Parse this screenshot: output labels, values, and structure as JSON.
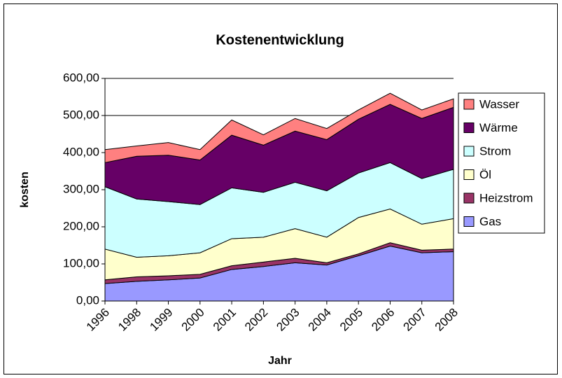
{
  "chart_data": {
    "type": "stacked_area",
    "title": "Kostenentwicklung",
    "x_label": "Jahr",
    "y_label": "kosten",
    "categories": [
      "1996",
      "1998",
      "1999",
      "2000",
      "2001",
      "2002",
      "2003",
      "2004",
      "2005",
      "2006",
      "2007",
      "2008"
    ],
    "series": [
      {
        "name": "Gas",
        "color": "#9999ff",
        "values": [
          47,
          53,
          57,
          62,
          85,
          93,
          103,
          97,
          122,
          148,
          130,
          133
        ]
      },
      {
        "name": "Heizstrom",
        "color": "#993366",
        "values": [
          10,
          12,
          11,
          10,
          10,
          12,
          12,
          6,
          5,
          9,
          7,
          7
        ]
      },
      {
        "name": "Öl",
        "color": "#ffffcc",
        "values": [
          83,
          53,
          54,
          58,
          73,
          67,
          80,
          69,
          98,
          91,
          70,
          82
        ]
      },
      {
        "name": "Strom",
        "color": "#ccffff",
        "values": [
          168,
          157,
          146,
          130,
          137,
          121,
          125,
          125,
          120,
          125,
          123,
          133
        ]
      },
      {
        "name": "Wärme",
        "color": "#660066",
        "values": [
          65,
          115,
          125,
          120,
          142,
          127,
          138,
          138,
          145,
          157,
          162,
          167
        ]
      },
      {
        "name": "Wasser",
        "color": "#ff8080",
        "values": [
          35,
          28,
          34,
          28,
          41,
          28,
          34,
          30,
          25,
          30,
          23,
          23
        ]
      }
    ],
    "ylim": [
      0,
      600
    ],
    "yticks": [
      {
        "value": 0,
        "label": "0,00"
      },
      {
        "value": 100,
        "label": "100,00"
      },
      {
        "value": 200,
        "label": "200,00"
      },
      {
        "value": 300,
        "label": "300,00"
      },
      {
        "value": 400,
        "label": "400,00"
      },
      {
        "value": 500,
        "label": "500,00"
      },
      {
        "value": 600,
        "label": "600,00"
      }
    ],
    "grid": true,
    "legend": "right"
  }
}
